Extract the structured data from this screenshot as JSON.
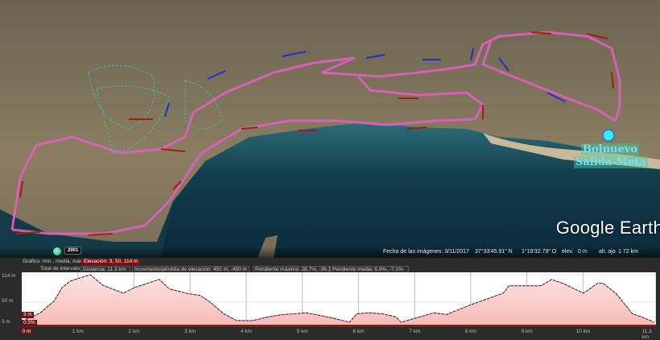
{
  "map": {
    "place_label_1": "Bolnuevo",
    "place_label_2": "Salida-Meta",
    "logo": "Google Earth",
    "route_color": "#e060c0",
    "arrow_colors": [
      "#a02010",
      "#2030d0"
    ],
    "historical_imagery_year": "2001",
    "icon": "historical-imagery-clock-icon"
  },
  "status": {
    "imagery_date": "Fecha de las imágenes: 3/11/2017",
    "lat": "37°33'45.91\" N",
    "lon": "1°19'32.79\" O",
    "elev_label": "elev.",
    "elev_value": "0 m",
    "eye_label": "alt. ojo",
    "eye_value": "1.72 km"
  },
  "profile": {
    "graph_label": "Gráfico: mín., media, máx.",
    "elevation": "Elevación: 3, 50, 114 m",
    "range_label": "Total de intervalo:",
    "distance": "Distancia: 11.3 km",
    "gain_loss": "Incremento/pérdida de elevación: 450 m, -450 m",
    "max_slope": "Pendiente máxima: 28.7%, -36.3%",
    "avg_slope": "Pendiente media: 6.9%, -7.1%",
    "y_labels": [
      "114 m",
      "50 m",
      "3 m"
    ],
    "x_labels": [
      "0 m",
      "1 km",
      "2 km",
      "3 km",
      "4 km",
      "5 km",
      "6 km",
      "7 km",
      "8 km",
      "9 km",
      "10 km",
      "11.3 km"
    ],
    "cursor_elev": "3 m",
    "cursor_slope": "0.5%",
    "fill_color": "#f7b8b8",
    "line_color": "#3a1a1a"
  },
  "chart_data": {
    "type": "area",
    "xlabel": "",
    "ylabel": "",
    "xlim": [
      0,
      11.3
    ],
    "ylim": [
      3,
      114
    ],
    "x_ticks_km": [
      0,
      1,
      2,
      3,
      4,
      5,
      6,
      7,
      8,
      9,
      10,
      11.3
    ],
    "grid": true,
    "points": [
      [
        0,
        5
      ],
      [
        0.33,
        25
      ],
      [
        0.58,
        53
      ],
      [
        0.72,
        84
      ],
      [
        0.86,
        99
      ],
      [
        1.05,
        107
      ],
      [
        1.22,
        114
      ],
      [
        1.44,
        90
      ],
      [
        1.81,
        71
      ],
      [
        2.01,
        84
      ],
      [
        2.24,
        94
      ],
      [
        2.45,
        103
      ],
      [
        2.63,
        81
      ],
      [
        2.96,
        70
      ],
      [
        3.17,
        66
      ],
      [
        3.35,
        51
      ],
      [
        3.6,
        23
      ],
      [
        3.83,
        7
      ],
      [
        4.12,
        7
      ],
      [
        4.4,
        16
      ],
      [
        4.65,
        21
      ],
      [
        5.08,
        25
      ],
      [
        5.51,
        14
      ],
      [
        5.84,
        3
      ],
      [
        5.97,
        23
      ],
      [
        6.19,
        25
      ],
      [
        6.42,
        23
      ],
      [
        6.66,
        16
      ],
      [
        6.76,
        3
      ],
      [
        7.05,
        14
      ],
      [
        7.34,
        25
      ],
      [
        7.57,
        21
      ],
      [
        8.0,
        44
      ],
      [
        8.58,
        71
      ],
      [
        8.68,
        88
      ],
      [
        9.25,
        88
      ],
      [
        9.44,
        103
      ],
      [
        9.64,
        94
      ],
      [
        10.01,
        71
      ],
      [
        10.26,
        94
      ],
      [
        10.36,
        94
      ],
      [
        10.59,
        70
      ],
      [
        10.88,
        23
      ],
      [
        11.08,
        14
      ],
      [
        11.27,
        3
      ]
    ]
  }
}
